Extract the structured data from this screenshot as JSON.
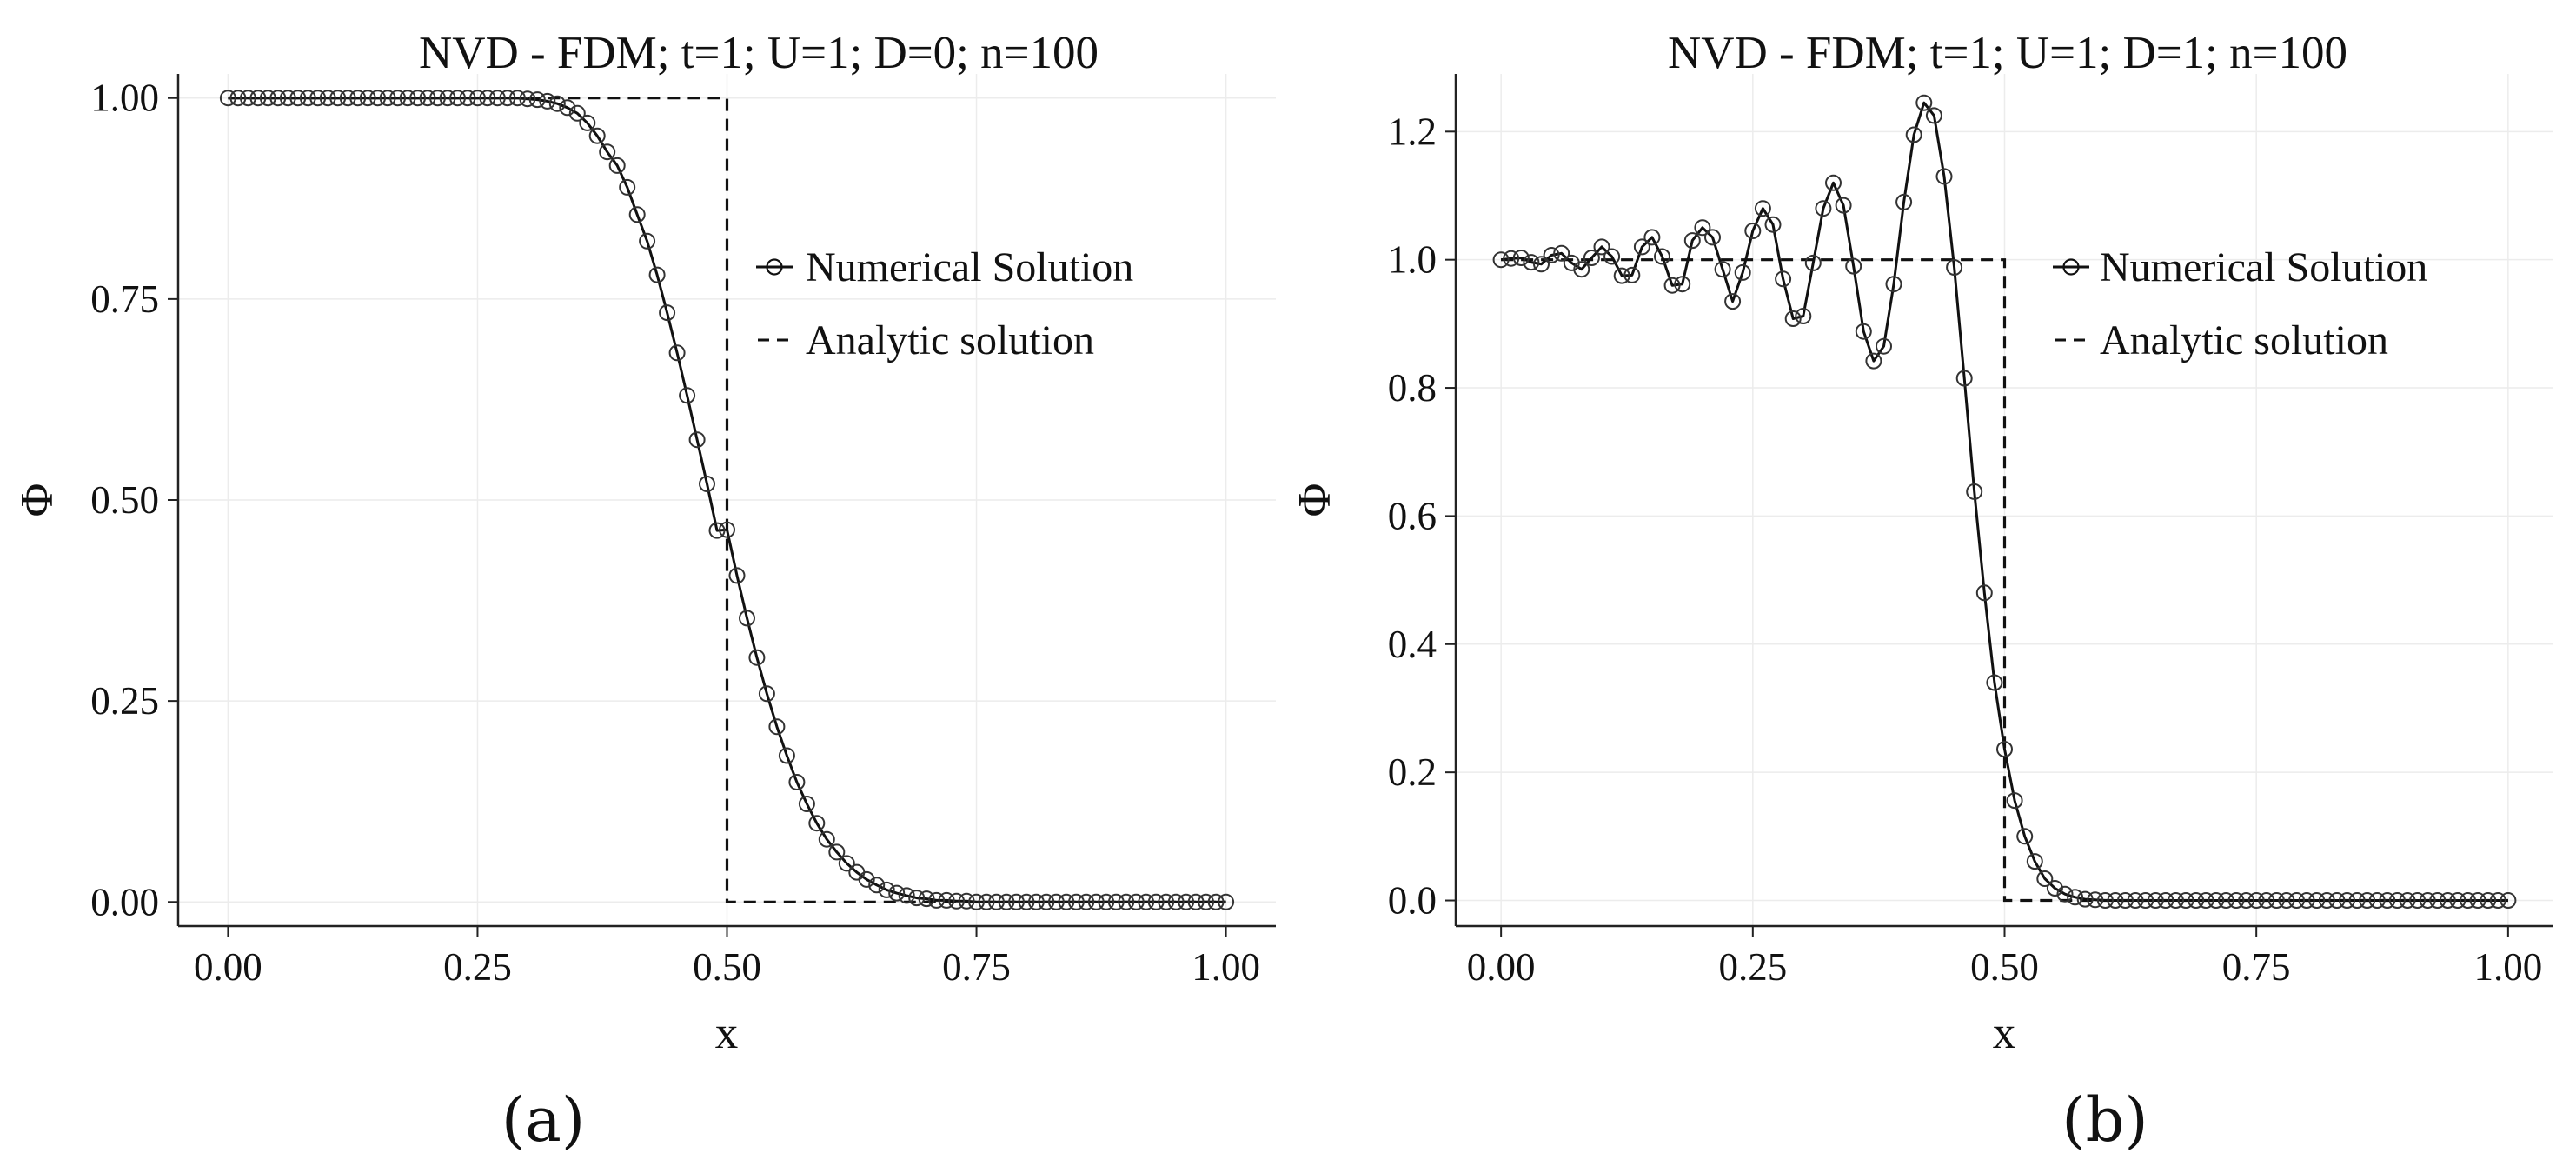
{
  "chart_data": [
    {
      "type": "line",
      "panel_label": "(a)",
      "title": "NVD - FDM; t=1; U=1; D=0; n=100",
      "xlabel": "x",
      "ylabel": "Φ",
      "xlim": [
        -0.05,
        1.05
      ],
      "ylim": [
        -0.03,
        1.03
      ],
      "xticks": [
        0.0,
        0.25,
        0.5,
        0.75,
        1.0
      ],
      "xtick_labels": [
        "0.00",
        "0.25",
        "0.50",
        "0.75",
        "1.00"
      ],
      "yticks": [
        0.0,
        0.25,
        0.5,
        0.75,
        1.0
      ],
      "ytick_labels": [
        "0.00",
        "0.25",
        "0.50",
        "0.75",
        "1.00"
      ],
      "legend_position": "right-upper",
      "series": [
        {
          "name": "Numerical Solution",
          "style": "solid line with circle markers",
          "x": [
            0.0,
            0.01,
            0.02,
            0.03,
            0.04,
            0.05,
            0.06,
            0.07,
            0.08,
            0.09,
            0.1,
            0.11,
            0.12,
            0.13,
            0.14,
            0.15,
            0.16,
            0.17,
            0.18,
            0.19,
            0.2,
            0.21,
            0.22,
            0.23,
            0.24,
            0.25,
            0.26,
            0.27,
            0.28,
            0.29,
            0.3,
            0.31,
            0.32,
            0.33,
            0.34,
            0.35,
            0.36,
            0.37,
            0.38,
            0.39,
            0.4,
            0.41,
            0.42,
            0.43,
            0.44,
            0.45,
            0.46,
            0.47,
            0.48,
            0.49,
            0.5,
            0.51,
            0.52,
            0.53,
            0.54,
            0.55,
            0.56,
            0.57,
            0.58,
            0.59,
            0.6,
            0.61,
            0.62,
            0.63,
            0.64,
            0.65,
            0.66,
            0.67,
            0.68,
            0.69,
            0.7,
            0.71,
            0.72,
            0.73,
            0.74,
            0.75,
            0.76,
            0.77,
            0.78,
            0.79,
            0.8,
            0.81,
            0.82,
            0.83,
            0.84,
            0.85,
            0.86,
            0.87,
            0.88,
            0.89,
            0.9,
            0.91,
            0.92,
            0.93,
            0.94,
            0.95,
            0.96,
            0.97,
            0.98,
            0.99,
            1.0
          ],
          "y": [
            1.0,
            1.0,
            1.0,
            1.0,
            1.0,
            1.0,
            1.0,
            1.0,
            1.0,
            1.0,
            1.0,
            1.0,
            1.0,
            1.0,
            1.0,
            1.0,
            1.0,
            1.0,
            1.0,
            1.0,
            1.0,
            1.0,
            1.0,
            1.0,
            1.0,
            1.0,
            1.0,
            1.0,
            1.0,
            1.0,
            0.999,
            0.998,
            0.996,
            0.993,
            0.988,
            0.981,
            0.969,
            0.953,
            0.933,
            0.916,
            0.889,
            0.855,
            0.822,
            0.78,
            0.733,
            0.683,
            0.63,
            0.575,
            0.52,
            0.462,
            0.463,
            0.406,
            0.353,
            0.304,
            0.259,
            0.218,
            0.182,
            0.149,
            0.122,
            0.098,
            0.078,
            0.062,
            0.048,
            0.037,
            0.028,
            0.021,
            0.015,
            0.011,
            0.008,
            0.005,
            0.004,
            0.002,
            0.002,
            0.001,
            0.001,
            0.0,
            0.0,
            0.0,
            0.0,
            0.0,
            0.0,
            0.0,
            0.0,
            0.0,
            0.0,
            0.0,
            0.0,
            0.0,
            0.0,
            0.0,
            0.0,
            0.0,
            0.0,
            0.0,
            0.0,
            0.0,
            0.0,
            0.0,
            0.0,
            0.0,
            0.0
          ]
        },
        {
          "name": "Analytic solution",
          "style": "dashed line",
          "x": [
            0.0,
            0.5,
            0.5,
            1.0
          ],
          "y": [
            1.0,
            1.0,
            0.0,
            0.0
          ]
        }
      ]
    },
    {
      "type": "line",
      "panel_label": "(b)",
      "title": "NVD - FDM; t=1; U=1; D=1; n=100",
      "xlabel": "x",
      "ylabel": "Φ",
      "xlim": [
        -0.045,
        1.045
      ],
      "ylim": [
        -0.04,
        1.29
      ],
      "xticks": [
        0.0,
        0.25,
        0.5,
        0.75,
        1.0
      ],
      "xtick_labels": [
        "0.00",
        "0.25",
        "0.50",
        "0.75",
        "1.00"
      ],
      "yticks": [
        0.0,
        0.2,
        0.4,
        0.6,
        0.8,
        1.0,
        1.2
      ],
      "ytick_labels": [
        "0.0",
        "0.2",
        "0.4",
        "0.6",
        "0.8",
        "1.0",
        "1.2"
      ],
      "legend_position": "right-upper",
      "series": [
        {
          "name": "Numerical Solution",
          "style": "solid line with circle markers",
          "x": [
            0.0,
            0.01,
            0.02,
            0.03,
            0.04,
            0.05,
            0.06,
            0.07,
            0.08,
            0.09,
            0.1,
            0.11,
            0.12,
            0.13,
            0.14,
            0.15,
            0.16,
            0.17,
            0.18,
            0.19,
            0.2,
            0.21,
            0.22,
            0.23,
            0.24,
            0.25,
            0.26,
            0.27,
            0.28,
            0.29,
            0.3,
            0.31,
            0.32,
            0.33,
            0.34,
            0.35,
            0.36,
            0.37,
            0.38,
            0.39,
            0.4,
            0.41,
            0.42,
            0.43,
            0.44,
            0.45,
            0.46,
            0.47,
            0.48,
            0.49,
            0.5,
            0.51,
            0.52,
            0.53,
            0.54,
            0.55,
            0.56,
            0.57,
            0.58,
            0.59,
            0.6,
            0.61,
            0.62,
            0.63,
            0.64,
            0.65,
            0.66,
            0.67,
            0.68,
            0.69,
            0.7,
            0.71,
            0.72,
            0.73,
            0.74,
            0.75,
            0.76,
            0.77,
            0.78,
            0.79,
            0.8,
            0.81,
            0.82,
            0.83,
            0.84,
            0.85,
            0.86,
            0.87,
            0.88,
            0.89,
            0.9,
            0.91,
            0.92,
            0.93,
            0.94,
            0.95,
            0.96,
            0.97,
            0.98,
            0.99,
            1.0
          ],
          "y": [
            1.0,
            1.002,
            1.003,
            0.996,
            0.993,
            1.007,
            1.01,
            0.995,
            0.985,
            1.003,
            1.02,
            1.005,
            0.975,
            0.976,
            1.02,
            1.035,
            1.005,
            0.96,
            0.962,
            1.03,
            1.05,
            1.035,
            0.985,
            0.935,
            0.98,
            1.045,
            1.08,
            1.055,
            0.97,
            0.908,
            0.912,
            0.995,
            1.08,
            1.12,
            1.085,
            0.99,
            0.888,
            0.842,
            0.865,
            0.962,
            1.09,
            1.195,
            1.245,
            1.225,
            1.13,
            0.988,
            0.815,
            0.638,
            0.48,
            0.34,
            0.236,
            0.156,
            0.1,
            0.061,
            0.034,
            0.019,
            0.01,
            0.005,
            0.002,
            0.001,
            0.0,
            0.0,
            0.0,
            0.0,
            0.0,
            0.0,
            0.0,
            0.0,
            0.0,
            0.0,
            0.0,
            0.0,
            0.0,
            0.0,
            0.0,
            0.0,
            0.0,
            0.0,
            0.0,
            0.0,
            0.0,
            0.0,
            0.0,
            0.0,
            0.0,
            0.0,
            0.0,
            0.0,
            0.0,
            0.0,
            0.0,
            0.0,
            0.0,
            0.0,
            0.0,
            0.0,
            0.0,
            0.0,
            0.0,
            0.0,
            0.0
          ]
        },
        {
          "name": "Analytic solution",
          "style": "dashed line",
          "x": [
            0.0,
            0.5,
            0.5,
            1.0
          ],
          "y": [
            1.0,
            1.0,
            0.0,
            0.0
          ]
        }
      ]
    }
  ]
}
